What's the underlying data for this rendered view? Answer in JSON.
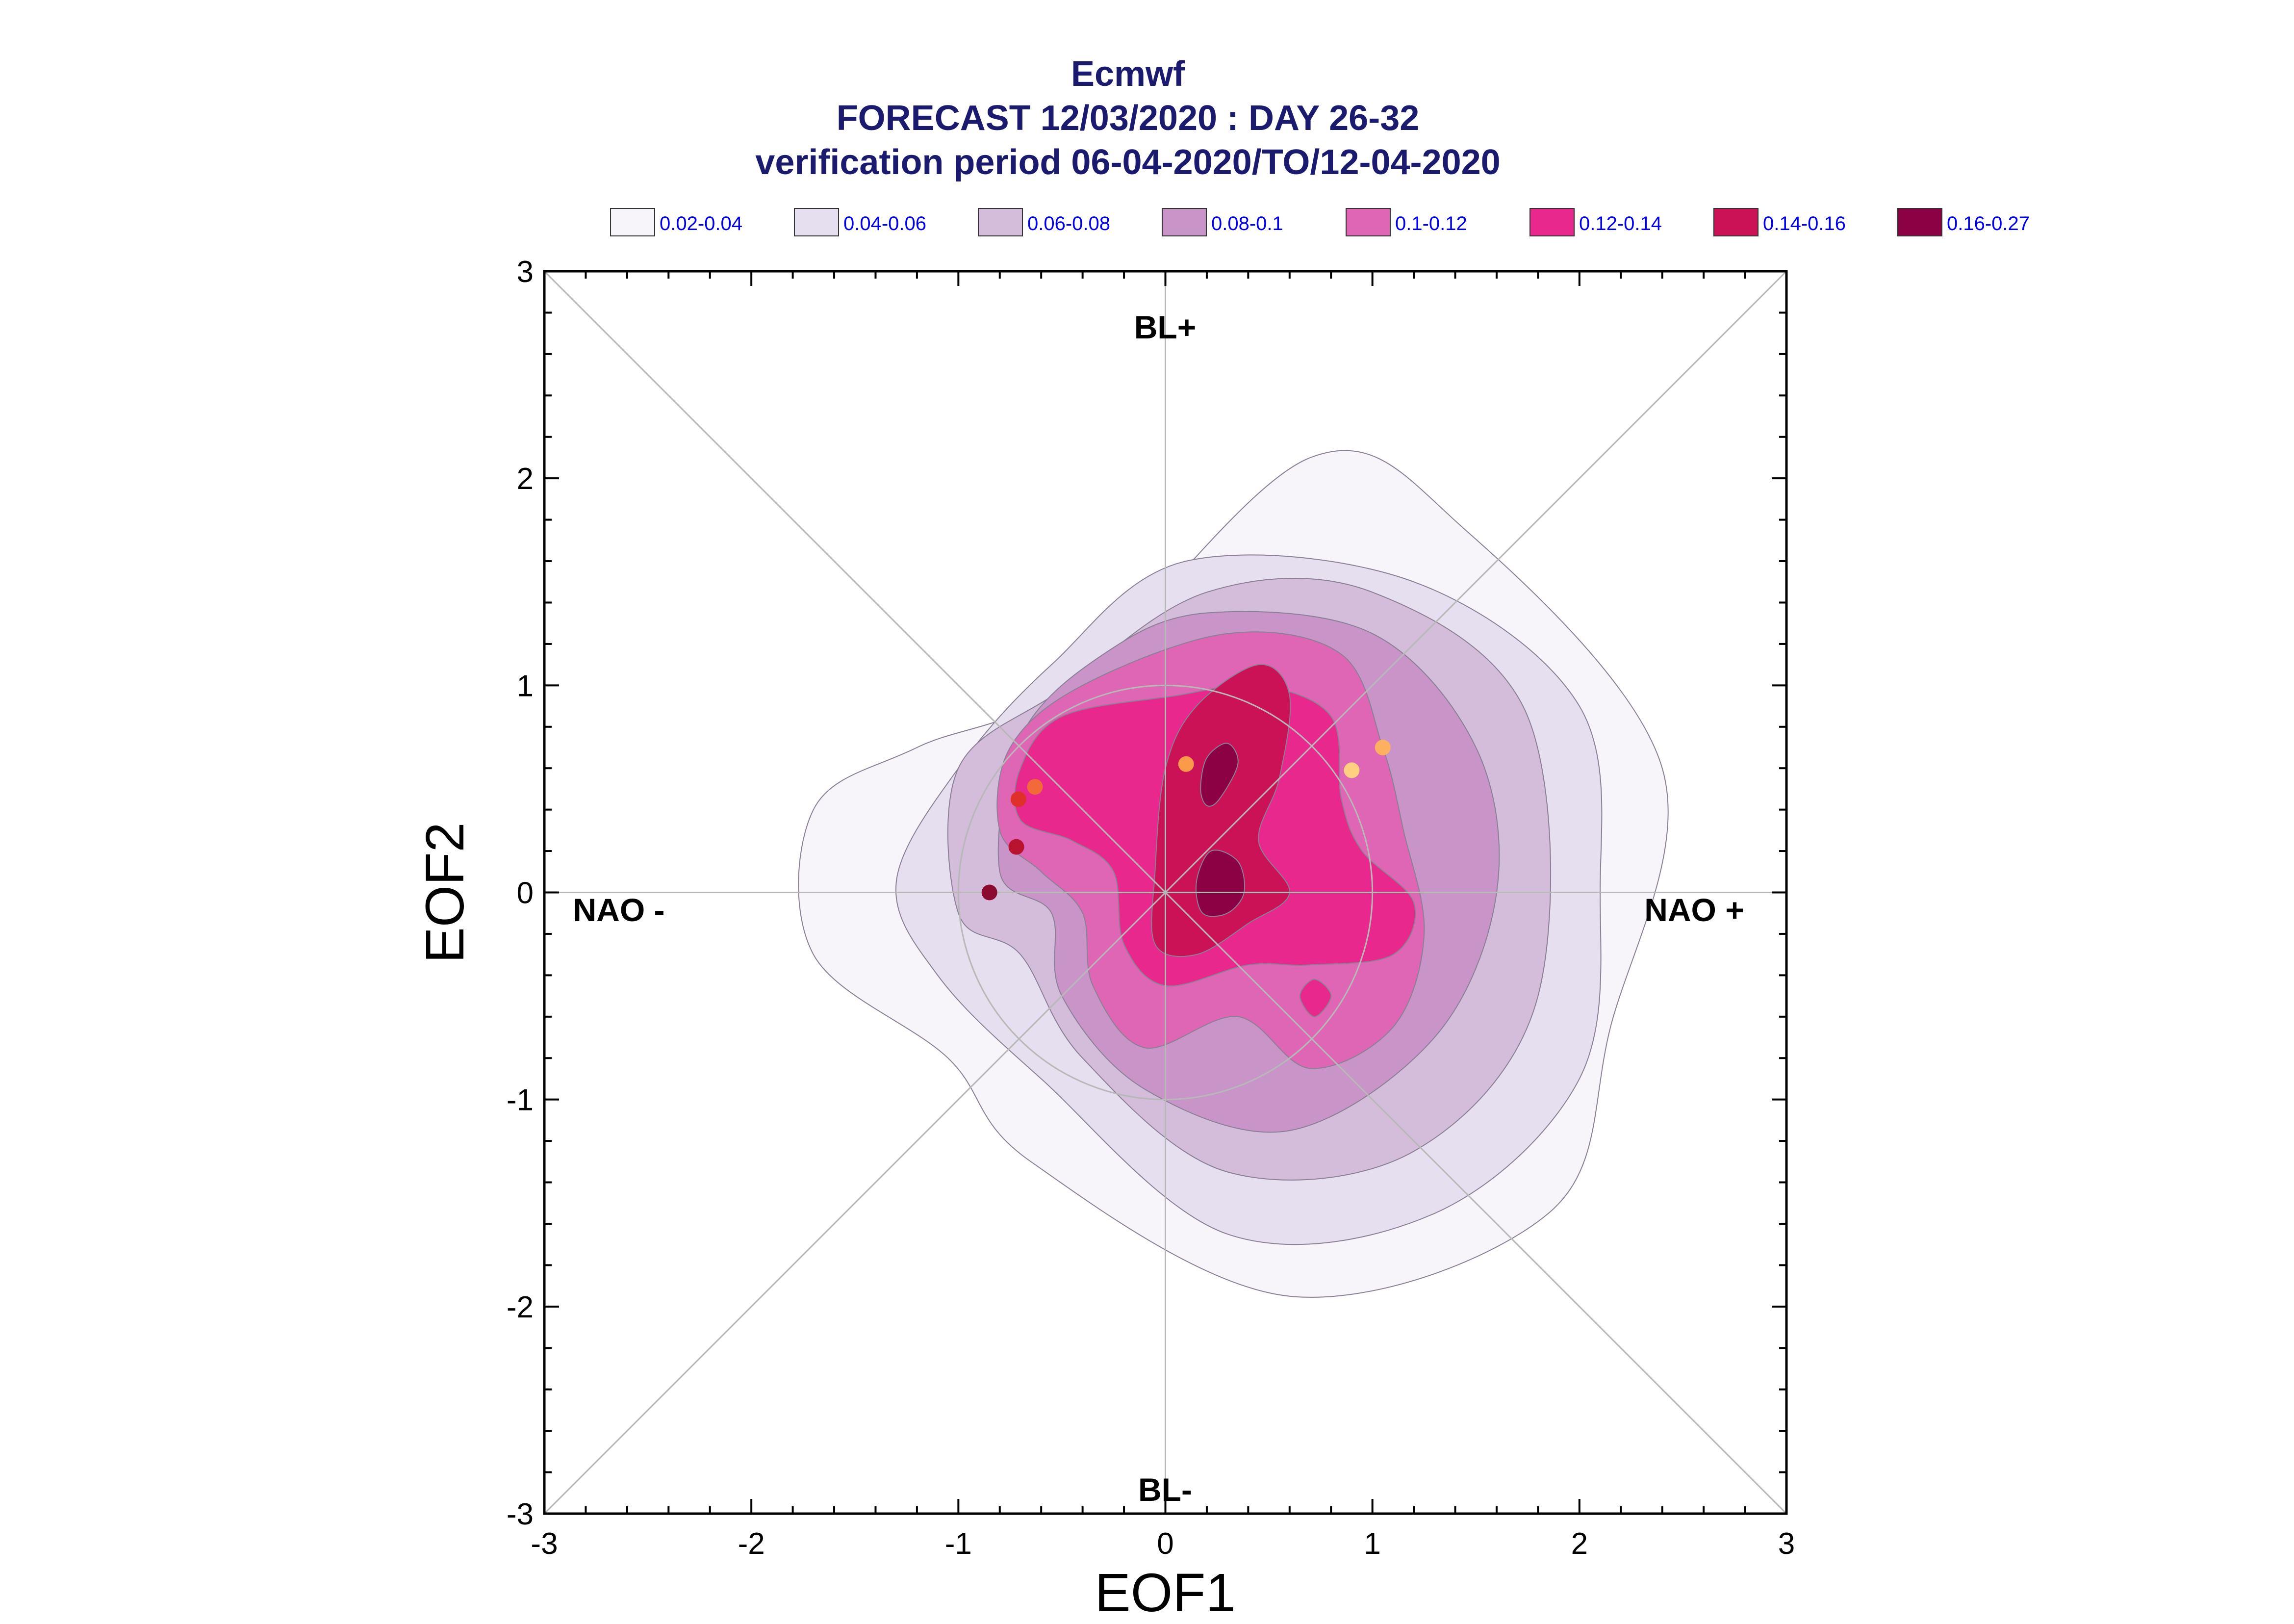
{
  "chart_data": {
    "type": "contour",
    "title": {
      "line1": "Ecmwf",
      "line2": "FORECAST 12/03/2020 : DAY 26-32",
      "line3": "verification period 06-04-2020/TO/12-04-2020"
    },
    "xlabel": "EOF1",
    "ylabel": "EOF2",
    "xlim": [
      -3,
      3
    ],
    "ylim": [
      -3,
      3
    ],
    "x_ticks": [
      "-3",
      "-2",
      "-1",
      "0",
      "1",
      "2",
      "3"
    ],
    "y_ticks": [
      "-3",
      "-2",
      "-1",
      "0",
      "1",
      "2",
      "3"
    ],
    "regime_labels": {
      "top": "BL+",
      "bottom": "BL-",
      "left": "NAO -",
      "right": "NAO +"
    },
    "legend": [
      {
        "label": "0.02-0.04",
        "color": "#f7f4fa"
      },
      {
        "label": "0.04-0.06",
        "color": "#e6dfef"
      },
      {
        "label": "0.06-0.08",
        "color": "#d4bcdb"
      },
      {
        "label": "0.08-0.1",
        "color": "#c995c8"
      },
      {
        "label": "0.1-0.12",
        "color": "#de66b4"
      },
      {
        "label": "0.12-0.14",
        "color": "#e8288c"
      },
      {
        "label": "0.14-0.16",
        "color": "#cc1256"
      },
      {
        "label": "0.16-0.27",
        "color": "#8c0044"
      }
    ],
    "contours": [
      {
        "level": "0.02-0.04",
        "points": [
          [
            -0.44,
            1.02
          ],
          [
            0.7,
            2.1
          ],
          [
            1.45,
            1.75
          ],
          [
            2.4,
            0.6
          ],
          [
            2.15,
            -0.65
          ],
          [
            1.85,
            -1.55
          ],
          [
            0.6,
            -1.95
          ],
          [
            -0.65,
            -1.3
          ],
          [
            -1.05,
            -0.8
          ],
          [
            -1.7,
            -0.3
          ],
          [
            -1.7,
            0.4
          ],
          [
            -1.2,
            0.7
          ]
        ]
      },
      {
        "level": "0.04-0.06",
        "points": [
          [
            -0.55,
            1.1
          ],
          [
            0.1,
            1.6
          ],
          [
            1.2,
            1.5
          ],
          [
            2.0,
            0.9
          ],
          [
            2.1,
            0.0
          ],
          [
            2.0,
            -0.9
          ],
          [
            1.3,
            -1.55
          ],
          [
            0.3,
            -1.65
          ],
          [
            -0.6,
            -0.9
          ],
          [
            -1.1,
            -0.4
          ],
          [
            -1.3,
            0.05
          ],
          [
            -1.0,
            0.6
          ]
        ]
      },
      {
        "level": "0.06-0.08",
        "points": [
          [
            -0.5,
            0.98
          ],
          [
            0.2,
            1.45
          ],
          [
            1.0,
            1.45
          ],
          [
            1.75,
            0.85
          ],
          [
            1.8,
            -0.5
          ],
          [
            1.2,
            -1.25
          ],
          [
            0.3,
            -1.35
          ],
          [
            -0.4,
            -0.8
          ],
          [
            -0.7,
            -0.3
          ],
          [
            -1.0,
            -0.1
          ],
          [
            -1.0,
            0.6
          ]
        ]
      },
      {
        "level": "0.08-0.1",
        "points": [
          [
            -0.7,
            0.75
          ],
          [
            -0.3,
            1.15
          ],
          [
            0.2,
            1.35
          ],
          [
            1.0,
            1.25
          ],
          [
            1.5,
            0.7
          ],
          [
            1.6,
            0.0
          ],
          [
            1.3,
            -0.7
          ],
          [
            0.6,
            -1.15
          ],
          [
            -0.1,
            -0.95
          ],
          [
            -0.5,
            -0.5
          ],
          [
            -0.55,
            -0.1
          ],
          [
            -0.8,
            0.1
          ]
        ]
      },
      {
        "level": "0.1-0.12",
        "points": [
          [
            -0.75,
            0.7
          ],
          [
            -0.4,
            1.0
          ],
          [
            0.3,
            1.25
          ],
          [
            0.85,
            1.15
          ],
          [
            1.05,
            0.7
          ],
          [
            1.15,
            0.3
          ],
          [
            1.25,
            -0.2
          ],
          [
            1.1,
            -0.65
          ],
          [
            0.7,
            -0.85
          ],
          [
            0.35,
            -0.6
          ],
          [
            -0.1,
            -0.75
          ],
          [
            -0.35,
            -0.45
          ],
          [
            -0.4,
            -0.1
          ],
          [
            -0.6,
            0.1
          ],
          [
            -0.8,
            0.3
          ]
        ]
      },
      {
        "level": "0.12-0.14",
        "points": [
          [
            -0.7,
            0.6
          ],
          [
            -0.5,
            0.85
          ],
          [
            0.05,
            0.95
          ],
          [
            0.45,
            1.0
          ],
          [
            0.8,
            0.85
          ],
          [
            0.85,
            0.45
          ],
          [
            0.95,
            0.2
          ],
          [
            1.2,
            -0.05
          ],
          [
            1.1,
            -0.3
          ],
          [
            0.7,
            -0.35
          ],
          [
            0.4,
            -0.35
          ],
          [
            0.0,
            -0.45
          ],
          [
            -0.2,
            -0.25
          ],
          [
            -0.25,
            0.1
          ],
          [
            -0.45,
            0.25
          ],
          [
            -0.7,
            0.35
          ]
        ]
      },
      {
        "level": "0.12-0.14",
        "points": [
          [
            0.65,
            -0.5
          ],
          [
            0.72,
            -0.42
          ],
          [
            0.8,
            -0.5
          ],
          [
            0.72,
            -0.6
          ]
        ]
      },
      {
        "level": "0.14-0.16",
        "points": [
          [
            0.0,
            0.6
          ],
          [
            0.15,
            0.9
          ],
          [
            0.45,
            1.1
          ],
          [
            0.6,
            0.95
          ],
          [
            0.55,
            0.55
          ],
          [
            0.45,
            0.25
          ],
          [
            0.6,
            0.0
          ],
          [
            0.4,
            -0.15
          ],
          [
            0.15,
            -0.3
          ],
          [
            -0.05,
            -0.25
          ],
          [
            -0.05,
            0.1
          ]
        ]
      },
      {
        "level": "0.16-0.27",
        "points": [
          [
            0.17,
            0.5
          ],
          [
            0.2,
            0.65
          ],
          [
            0.3,
            0.72
          ],
          [
            0.35,
            0.62
          ],
          [
            0.26,
            0.45
          ],
          [
            0.2,
            0.42
          ]
        ]
      },
      {
        "level": "0.16-0.27",
        "points": [
          [
            0.15,
            0.05
          ],
          [
            0.22,
            0.2
          ],
          [
            0.35,
            0.15
          ],
          [
            0.38,
            0.0
          ],
          [
            0.3,
            -0.1
          ],
          [
            0.18,
            -0.1
          ]
        ]
      }
    ],
    "points": [
      {
        "x": -0.85,
        "y": 0.0,
        "color": "#8b0a30"
      },
      {
        "x": -0.72,
        "y": 0.22,
        "color": "#b81430"
      },
      {
        "x": -0.71,
        "y": 0.45,
        "color": "#e0302a"
      },
      {
        "x": -0.63,
        "y": 0.51,
        "color": "#f26a3a"
      },
      {
        "x": 0.1,
        "y": 0.62,
        "color": "#fa9a4a"
      },
      {
        "x": 0.9,
        "y": 0.59,
        "color": "#ffd080"
      },
      {
        "x": 1.05,
        "y": 0.7,
        "color": "#fcb060"
      }
    ],
    "circle_radius": 1.0,
    "grid": true,
    "legend_position": "top"
  }
}
